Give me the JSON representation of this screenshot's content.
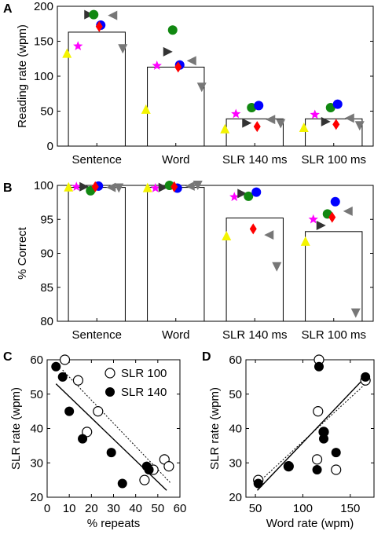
{
  "chart_data": [
    {
      "panel": "A",
      "type": "bar",
      "ylabel": "Reading rate (wpm)",
      "ylim": [
        0,
        200
      ],
      "yticks": [
        0,
        50,
        100,
        150,
        200
      ],
      "categories": [
        "Sentence",
        "Word",
        "SLR 140 ms",
        "SLR 100 ms"
      ],
      "values": [
        163,
        113,
        39,
        39
      ],
      "markers": [
        {
          "name": "yellow-triangle-up",
          "shape": "triangle-up",
          "color": "#f4f400",
          "values": [
            133,
            53,
            25,
            27
          ]
        },
        {
          "name": "magenta-star",
          "shape": "star",
          "color": "#ff00ff",
          "values": [
            143,
            115,
            46,
            45
          ]
        },
        {
          "name": "black-triangle-right",
          "shape": "triangle-right",
          "color": "#333333",
          "values": [
            188,
            135,
            33,
            35
          ]
        },
        {
          "name": "green-circle",
          "shape": "circle",
          "color": "#118811",
          "values": [
            188,
            166,
            55,
            55
          ]
        },
        {
          "name": "blue-circle",
          "shape": "circle",
          "color": "#0000ff",
          "values": [
            173,
            116,
            58,
            60
          ]
        },
        {
          "name": "red-diamond",
          "shape": "diamond",
          "color": "#ff0000",
          "values": [
            171,
            113,
            28,
            31
          ]
        },
        {
          "name": "gray-triangle-left",
          "shape": "triangle-left",
          "color": "#777777",
          "values": [
            187,
            122,
            38,
            40
          ]
        },
        {
          "name": "gray-triangle-down",
          "shape": "triangle-down",
          "color": "#777777",
          "values": [
            139,
            84,
            32,
            29
          ]
        }
      ]
    },
    {
      "panel": "B",
      "type": "bar",
      "ylabel": "% Correct",
      "ylim": [
        80,
        100
      ],
      "yticks": [
        80,
        85,
        90,
        95,
        100
      ],
      "categories": [
        "Sentence",
        "Word",
        "SLR 140 ms",
        "SLR 100 ms"
      ],
      "values": [
        99.7,
        99.7,
        95.2,
        93.2
      ],
      "markers": [
        {
          "name": "yellow-triangle-up",
          "shape": "triangle-up",
          "color": "#f4f400",
          "values": [
            99.8,
            99.7,
            92.6,
            91.8
          ]
        },
        {
          "name": "magenta-star",
          "shape": "star",
          "color": "#ff00ff",
          "values": [
            99.8,
            99.6,
            98.3,
            95.0
          ]
        },
        {
          "name": "black-triangle-right",
          "shape": "triangle-right",
          "color": "#333333",
          "values": [
            99.8,
            99.7,
            98.8,
            94.1
          ]
        },
        {
          "name": "green-circle",
          "shape": "circle",
          "color": "#118811",
          "values": [
            99.2,
            100.0,
            98.4,
            95.8
          ]
        },
        {
          "name": "blue-circle",
          "shape": "circle",
          "color": "#0000ff",
          "values": [
            99.9,
            99.6,
            99.0,
            97.6
          ]
        },
        {
          "name": "red-diamond",
          "shape": "diamond",
          "color": "#ff0000",
          "values": [
            99.8,
            99.8,
            93.6,
            95.3
          ]
        },
        {
          "name": "gray-triangle-left",
          "shape": "triangle-left",
          "color": "#777777",
          "values": [
            99.7,
            99.9,
            92.7,
            96.2
          ]
        },
        {
          "name": "gray-triangle-down",
          "shape": "triangle-down",
          "color": "#777777",
          "values": [
            99.6,
            100.0,
            88.0,
            81.2
          ]
        }
      ]
    },
    {
      "panel": "C",
      "type": "scatter",
      "xlabel": "% repeats",
      "ylabel": "SLR rate (wpm)",
      "xlim": [
        0,
        60
      ],
      "ylim": [
        20,
        60
      ],
      "xticks": [
        0,
        10,
        20,
        30,
        40,
        50,
        60
      ],
      "yticks": [
        20,
        30,
        40,
        50,
        60
      ],
      "legend_position": "top-right",
      "series": [
        {
          "name": "SLR 100",
          "marker": "open-circle",
          "x": [
            8,
            14,
            23,
            18,
            44,
            48,
            53,
            55
          ],
          "y": [
            60,
            54,
            45,
            39,
            25,
            28,
            31,
            29
          ],
          "fit": {
            "x": [
              7,
              56
            ],
            "y": [
              57,
              24
            ],
            "style": "dotted"
          }
        },
        {
          "name": "SLR 140",
          "marker": "filled-circle",
          "x": [
            4,
            7,
            10,
            16,
            29,
            34,
            45,
            46
          ],
          "y": [
            58,
            55,
            45,
            37,
            33,
            24,
            29,
            28
          ],
          "fit": {
            "x": [
              4,
              54
            ],
            "y": [
              53,
              22
            ],
            "style": "solid"
          }
        }
      ]
    },
    {
      "panel": "D",
      "type": "scatter",
      "xlabel": "Word rate (wpm)",
      "ylabel": "SLR rate (wpm)",
      "xlim": [
        40,
        175
      ],
      "ylim": [
        20,
        60
      ],
      "xticks": [
        50,
        100,
        150
      ],
      "yticks": [
        20,
        30,
        40,
        50,
        60
      ],
      "series": [
        {
          "name": "SLR 100",
          "marker": "open-circle",
          "x": [
            53,
            85,
            115,
            116,
            117,
            122,
            135,
            166
          ],
          "y": [
            25,
            29,
            31,
            45,
            60,
            39,
            28,
            54
          ],
          "fit": {
            "x": [
              52,
              166
            ],
            "y": [
              24,
              53
            ],
            "style": "dotted"
          }
        },
        {
          "name": "SLR 140",
          "marker": "filled-circle",
          "x": [
            53,
            85,
            115,
            117,
            122,
            122,
            135,
            166
          ],
          "y": [
            24,
            29,
            28,
            58,
            39,
            37,
            33,
            55
          ],
          "fit": {
            "x": [
              52,
              166
            ],
            "y": [
              22,
              55
            ],
            "style": "solid"
          }
        }
      ]
    }
  ],
  "panel_labels": {
    "a": "A",
    "b": "B",
    "c": "C",
    "d": "D"
  },
  "colors": {
    "bar_fill": "#ffffff",
    "axis": "#000000"
  }
}
